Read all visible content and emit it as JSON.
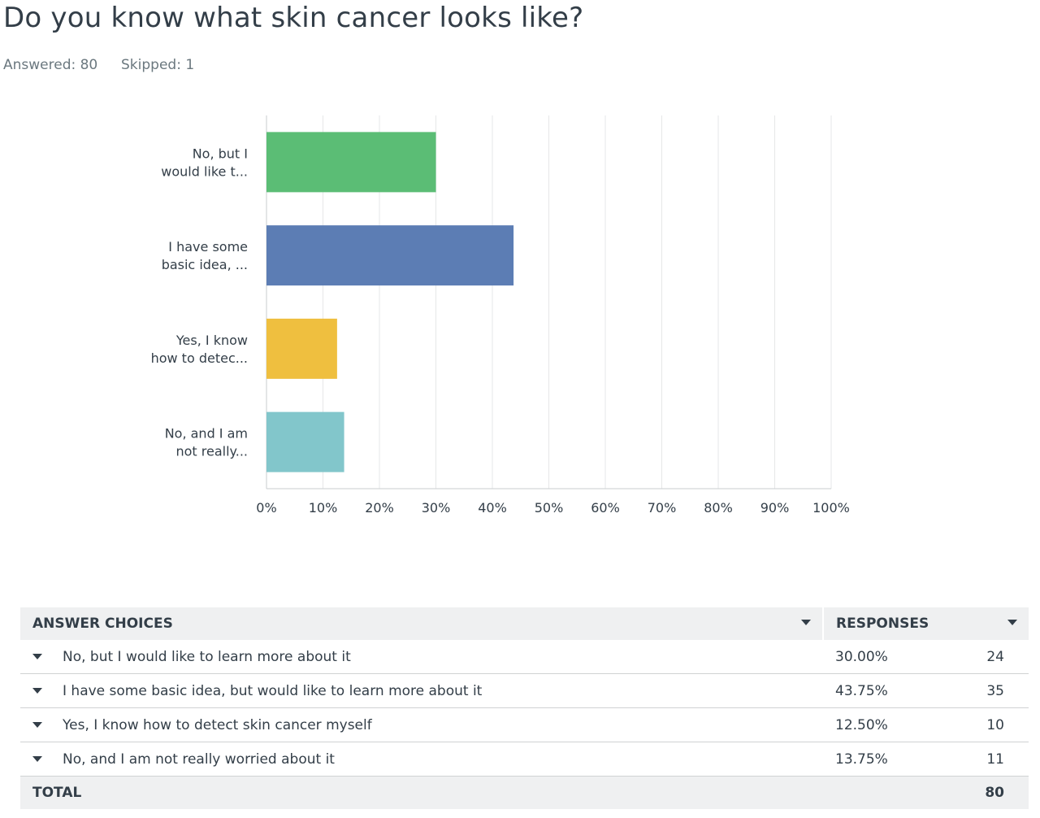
{
  "question": {
    "title": "Do you know what skin cancer looks like?",
    "answered": "Answered: 80",
    "skipped": "Skipped: 1"
  },
  "chart_data": {
    "type": "bar",
    "orientation": "horizontal",
    "categories": [
      "No, but I would like t...",
      "I have some basic idea, ...",
      "Yes, I know how to detec...",
      "No, and I am not really..."
    ],
    "category_lines": [
      [
        "No, but I",
        "would like t..."
      ],
      [
        "I have some",
        "basic idea, ..."
      ],
      [
        "Yes, I know",
        "how to detec..."
      ],
      [
        "No, and I am",
        "not really..."
      ]
    ],
    "values": [
      30.0,
      43.75,
      12.5,
      13.75
    ],
    "colors": [
      "#5bbd75",
      "#5c7db4",
      "#efbf3f",
      "#82c6cb"
    ],
    "xlim": [
      0,
      100
    ],
    "xticks": [
      0,
      10,
      20,
      30,
      40,
      50,
      60,
      70,
      80,
      90,
      100
    ],
    "xtick_labels": [
      "0%",
      "10%",
      "20%",
      "30%",
      "40%",
      "50%",
      "60%",
      "70%",
      "80%",
      "90%",
      "100%"
    ],
    "grid": true
  },
  "table": {
    "header_choices": "ANSWER CHOICES",
    "header_responses": "RESPONSES",
    "rows": [
      {
        "choice": "No, but I would like to learn more about it",
        "percent": "30.00%",
        "count": "24"
      },
      {
        "choice": "I have some basic idea, but would like to learn more about it",
        "percent": "43.75%",
        "count": "35"
      },
      {
        "choice": "Yes, I know how to detect skin cancer myself",
        "percent": "12.50%",
        "count": "10"
      },
      {
        "choice": "No, and I am not really worried about it",
        "percent": "13.75%",
        "count": "11"
      }
    ],
    "total_label": "TOTAL",
    "total_value": "80"
  }
}
